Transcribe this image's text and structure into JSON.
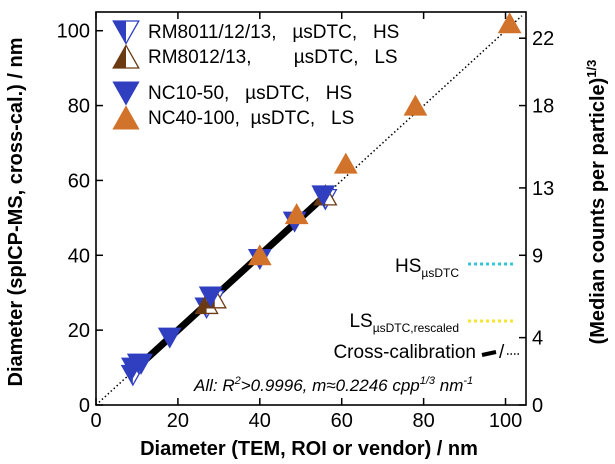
{
  "chart_data": {
    "type": "scatter",
    "xlabel": "Diameter (TEM, ROI or vendor) / nm",
    "ylabel": "Diameter (spICP-MS, cross-cal.) / nm",
    "y2label_base": "(Median counts per particle)",
    "y2label_sup": "1/3",
    "xlim": [
      0,
      105
    ],
    "ylim": [
      0,
      105
    ],
    "xticks": [
      "0",
      "20",
      "40",
      "60",
      "80",
      "100"
    ],
    "yticks": [
      "0",
      "20",
      "40",
      "60",
      "80",
      "100"
    ],
    "y2ticks": [
      {
        "label": "0",
        "value": 0
      },
      {
        "label": "4",
        "value": 18
      },
      {
        "label": "9",
        "value": 40
      },
      {
        "label": "13",
        "value": 58
      },
      {
        "label": "18",
        "value": 80
      },
      {
        "label": "22",
        "value": 98
      }
    ],
    "series": [
      {
        "name": "RM8011/12/13,   µsDTC,   HS",
        "marker": "tri-down",
        "color": "#2f3fc0",
        "fill": "half",
        "points": [
          [
            9,
            8
          ],
          [
            10.5,
            11
          ],
          [
            27,
            26
          ],
          [
            28.5,
            28
          ],
          [
            56,
            55
          ]
        ]
      },
      {
        "name": "RM8012/13,        µsDTC,   LS",
        "marker": "tri-up",
        "color": "#6b3a12",
        "fill": "half",
        "points": [
          [
            27,
            27
          ],
          [
            29,
            28.5
          ],
          [
            56,
            56
          ]
        ]
      },
      {
        "name": "NC10-50,   µsDTC,   HS",
        "marker": "tri-down",
        "color": "#2f3fc0",
        "fill": "full",
        "points": [
          [
            9,
            10
          ],
          [
            11,
            11
          ],
          [
            18,
            18
          ],
          [
            28,
            29
          ],
          [
            40,
            39
          ],
          [
            48.5,
            49
          ],
          [
            55.5,
            56
          ]
        ]
      },
      {
        "name": "NC40-100,  µsDTC,   LS",
        "marker": "tri-up",
        "color": "#d2732b",
        "fill": "full",
        "points": [
          [
            40,
            40
          ],
          [
            49,
            51
          ],
          [
            61,
            64.5
          ],
          [
            78,
            80
          ],
          [
            101,
            102
          ]
        ]
      }
    ],
    "lines": [
      {
        "kind": "fit-HS",
        "color": "#35c8d8",
        "x": [
          8,
          56
        ]
      },
      {
        "kind": "fit-LS",
        "color": "#f5e62e",
        "x": [
          27,
          57
        ]
      },
      {
        "kind": "cross-calibration-solid",
        "color": "#000000",
        "x": [
          9,
          57
        ]
      },
      {
        "kind": "cross-calibration-dotted",
        "color": "#000000",
        "x": [
          0,
          104
        ]
      }
    ],
    "line_legend": {
      "hs_main": "HS",
      "hs_sub": "µsDTC",
      "ls_main": "LS",
      "ls_sub": "µsDTC,rescaled",
      "cross": "Cross-calibration",
      "cross_sep": "/"
    },
    "annotation": {
      "prefix": "All: R",
      "r_sup": "2",
      "mid": ">0.9996, m≈0.2246 cpp",
      "cpp_sup": "1/3",
      "unit": " nm",
      "unit_sup": "-1"
    },
    "legend_placement": "top-left",
    "grid": false
  }
}
